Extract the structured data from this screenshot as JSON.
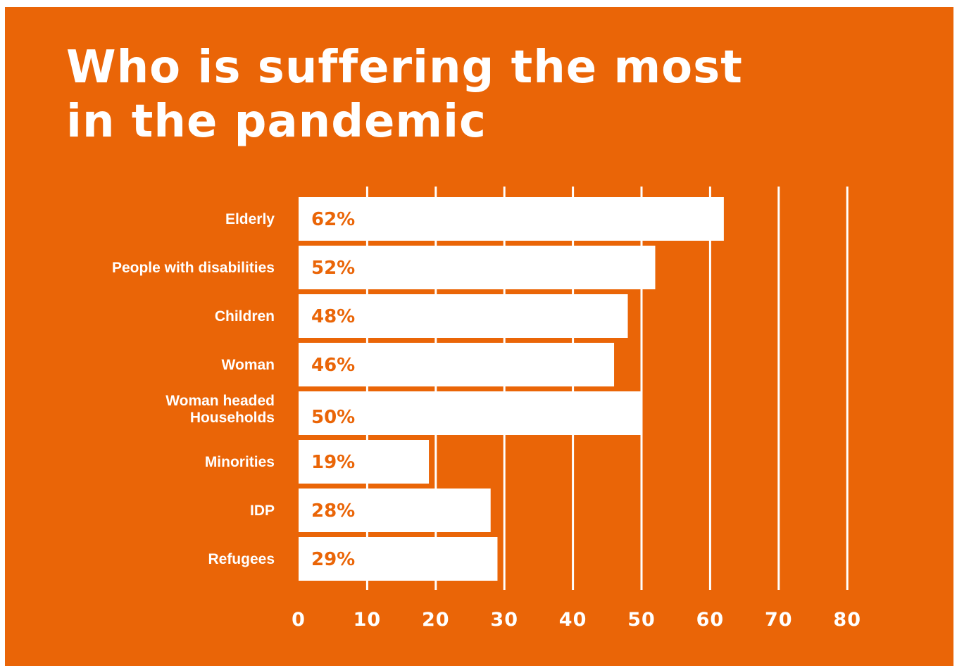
{
  "colors": {
    "background": "#EA6507",
    "bar": "#ffffff",
    "value_text": "#EA6507",
    "text": "#ffffff"
  },
  "chart_data": {
    "type": "bar",
    "orientation": "horizontal",
    "title_lines": [
      "Who is suffering the most",
      "in the pandemic"
    ],
    "categories": [
      [
        "Elderly"
      ],
      [
        "People with disabilities"
      ],
      [
        "Children"
      ],
      [
        "Woman"
      ],
      [
        "Woman headed",
        "Households"
      ],
      [
        "Minorities"
      ],
      [
        "IDP"
      ],
      [
        "Refugees"
      ]
    ],
    "values": [
      62,
      52,
      48,
      46,
      50,
      19,
      28,
      29
    ],
    "value_labels": [
      "62%",
      "52%",
      "48%",
      "46%",
      "50%",
      "19%",
      "28%",
      "29%"
    ],
    "xlim": [
      0,
      80
    ],
    "x_ticks": [
      "0",
      "10",
      "20",
      "30",
      "40",
      "50",
      "60",
      "70",
      "80"
    ],
    "grid": true
  }
}
